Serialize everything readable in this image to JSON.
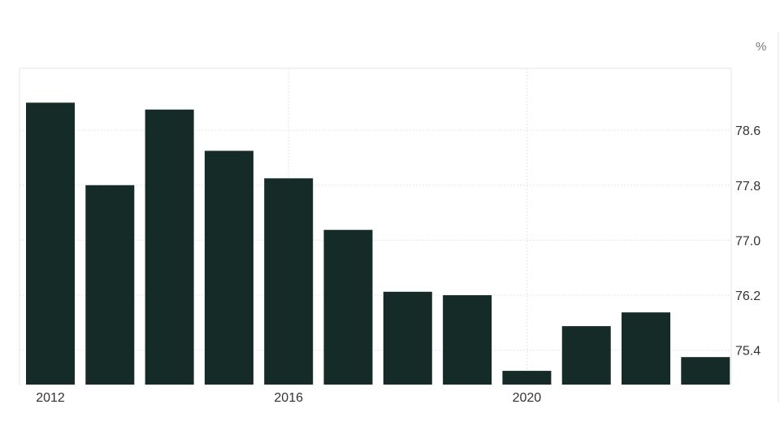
{
  "chart_data": {
    "type": "bar",
    "unit": "%",
    "x": [
      2012,
      2013,
      2014,
      2015,
      2016,
      2017,
      2018,
      2019,
      2020,
      2021,
      2022,
      2023
    ],
    "values": [
      79.0,
      77.8,
      78.9,
      78.3,
      77.9,
      77.15,
      76.25,
      76.2,
      75.1,
      75.75,
      75.95,
      75.3
    ],
    "ylim": [
      74.9,
      79.5
    ],
    "y_ticks": [
      "75.4",
      "76.2",
      "77.0",
      "77.8",
      "78.6"
    ],
    "x_ticks": [
      "2012",
      "2016",
      "2020"
    ],
    "title": "",
    "xlabel": "",
    "ylabel": "",
    "bar_color": "#142b27",
    "grid": true,
    "legend": "none"
  }
}
